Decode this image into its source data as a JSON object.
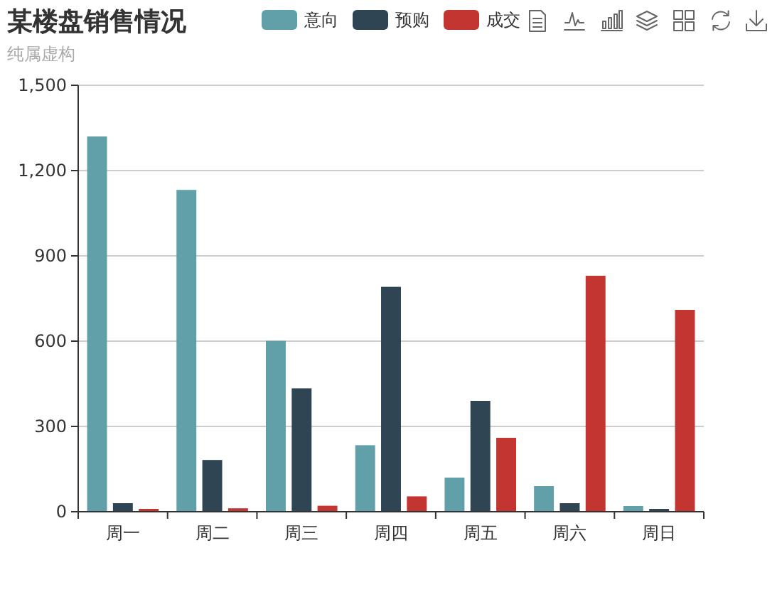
{
  "chart_data": {
    "type": "bar",
    "title": "某楼盘销售情况",
    "subtitle": "纯属虚构",
    "categories": [
      "周一",
      "周二",
      "周三",
      "周四",
      "周五",
      "周六",
      "周日"
    ],
    "series": [
      {
        "name": "意向",
        "color": "#61a0a8",
        "values": [
          1320,
          1132,
          601,
          234,
          120,
          90,
          20
        ]
      },
      {
        "name": "预购",
        "color": "#2f4554",
        "values": [
          30,
          182,
          434,
          791,
          390,
          30,
          10
        ]
      },
      {
        "name": "成交",
        "color": "#c23531",
        "values": [
          10,
          12,
          21,
          54,
          260,
          830,
          710
        ]
      }
    ],
    "ylim": [
      0,
      1500
    ],
    "yticks": [
      0,
      300,
      600,
      900,
      {
        "value": 1200,
        "label": "1,200"
      },
      {
        "value": 1500,
        "label": "1,500"
      }
    ],
    "grid": "y",
    "legend": "top"
  }
}
